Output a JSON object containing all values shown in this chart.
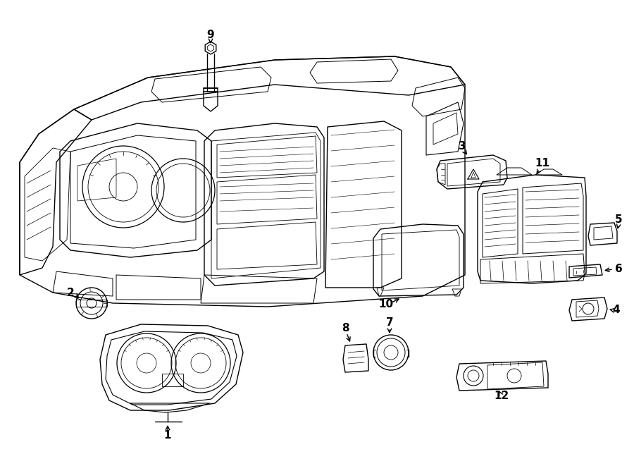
{
  "bg_color": "#ffffff",
  "line_color": "#000000",
  "fig_width": 9.0,
  "fig_height": 6.61,
  "dpi": 100,
  "label_fontsize": 11,
  "arrow_lw": 1.0,
  "part_lw": 0.8
}
